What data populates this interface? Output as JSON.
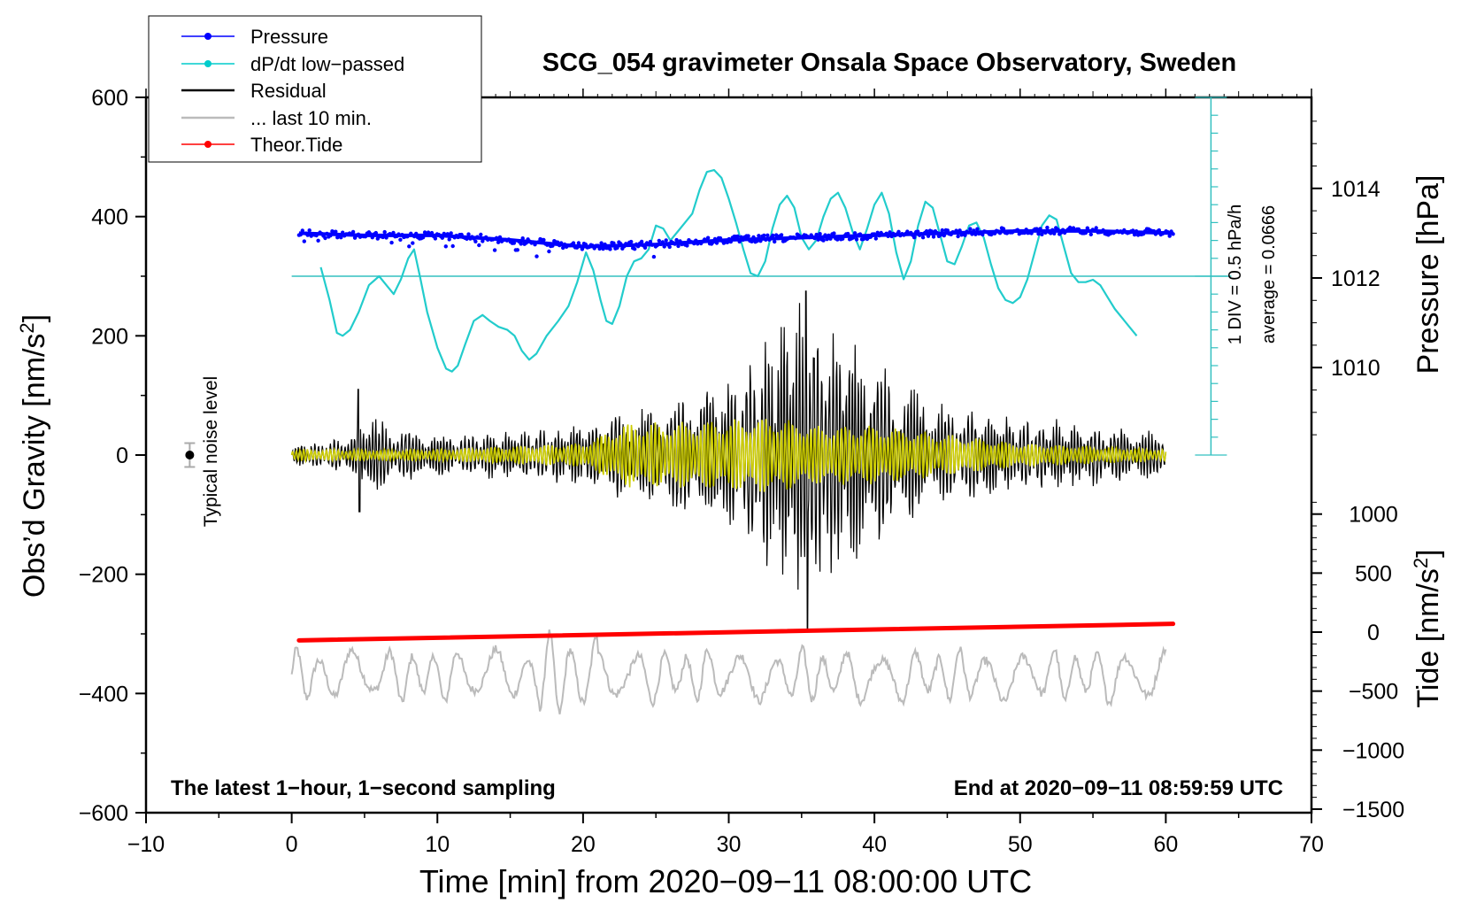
{
  "chart_data": {
    "type": "line",
    "title": "SCG_054 gravimeter Onsala Space Observatory, Sweden",
    "xlabel": "Time [min] from 2020−09−11 08:00:00 UTC",
    "ylabel_main": "Obs’d Gravity [nm/s²]",
    "ylabel_main_base": "Obs’d Gravity [nm/s",
    "ylabel_main_sup": "2",
    "ylabel_main_close": "]",
    "ylabel_pressure": "Pressure [hPa]",
    "ylabel_tide": "Tide [nm/s²]",
    "ylabel_tide_base": "Tide [nm/s",
    "ylabel_tide_sup": "2",
    "ylabel_tide_close": "]",
    "xlim": [
      -10,
      70
    ],
    "ylim_main": [
      -600,
      600
    ],
    "x_ticks": [
      -10,
      0,
      10,
      20,
      30,
      40,
      50,
      60,
      70
    ],
    "x_tick_labels": [
      "−10",
      "0",
      "10",
      "20",
      "30",
      "40",
      "50",
      "60",
      "70"
    ],
    "y_ticks_main": [
      -600,
      -400,
      -200,
      0,
      200,
      400,
      600
    ],
    "y_tick_labels_main": [
      "−600",
      "−400",
      "−200",
      "0",
      "200",
      "400",
      "600"
    ],
    "pressure_axis": {
      "ticks": [
        1010,
        1012,
        1014
      ],
      "tick_labels": [
        "1010",
        "1012",
        "1014"
      ]
    },
    "tide_axis": {
      "ticks": [
        -1500,
        -1000,
        -500,
        0,
        500,
        1000
      ],
      "tick_labels": [
        "−1500",
        "−1000",
        "−500",
        "0",
        "500",
        "1000"
      ]
    },
    "legend": [
      {
        "name": "Pressure",
        "color": "#0000ff",
        "marker": "dot"
      },
      {
        "name": "dP/dt low−passed",
        "color": "#00cccc",
        "marker": "dot"
      },
      {
        "name": "Residual",
        "color": "#000000",
        "marker": "none"
      },
      {
        "name": "... last 10 min.",
        "color": "#bbbbbb",
        "marker": "none"
      },
      {
        "name": "Theor.Tide",
        "color": "#ff0000",
        "marker": "dot"
      }
    ],
    "legend_position": "top-left",
    "annotations": {
      "noise_label": "Typical noise level",
      "scale_div": "1 DIV = 0.5 hPa/h",
      "scale_avg": "average = 0.0666",
      "bottom_left": "The latest 1−hour, 1−second sampling",
      "bottom_right": "End at 2020−09−11 08:59:59 UTC"
    },
    "noise_level": {
      "x": -7,
      "y": 0,
      "err": 20
    },
    "pressure_series": {
      "name": "Pressure",
      "x": [
        0.5,
        5,
        10,
        15,
        20,
        25,
        30,
        35,
        40,
        45,
        50,
        55,
        60.5
      ],
      "y_hpa": [
        1013.0,
        1012.95,
        1012.95,
        1012.85,
        1012.7,
        1012.75,
        1012.85,
        1012.9,
        1012.95,
        1013.0,
        1013.05,
        1013.05,
        1013.0
      ]
    },
    "dpdt_series": {
      "name": "dP/dt low−passed",
      "baseline_y": 300,
      "x": [
        2.0,
        2.6,
        3.1,
        3.5,
        4.0,
        4.6,
        5.3,
        6.0,
        6.5,
        7.0,
        7.5,
        8.0,
        8.4,
        8.8,
        9.3,
        10.0,
        10.6,
        11.0,
        11.4,
        11.9,
        12.5,
        13.1,
        13.6,
        14.2,
        14.8,
        15.3,
        15.8,
        16.3,
        16.8,
        17.5,
        18.3,
        19.0,
        19.6,
        20.2,
        20.7,
        21.2,
        21.6,
        22.0,
        22.5,
        23.0,
        23.5,
        24.0,
        24.5,
        25.0,
        25.5,
        26.0,
        26.5,
        27.0,
        27.5,
        28.0,
        28.5,
        29.0,
        29.5,
        30.0,
        30.5,
        31.0,
        31.5,
        32.0,
        32.5,
        33.0,
        33.5,
        34.0,
        34.5,
        35.0,
        35.5,
        36.0,
        36.5,
        37.0,
        37.5,
        38.0,
        38.5,
        39.0,
        39.5,
        40.0,
        40.5,
        41.0,
        41.5,
        42.0,
        42.5,
        43.0,
        43.5,
        44.0,
        44.5,
        45.0,
        45.5,
        46.0,
        46.5,
        47.0,
        47.5,
        48.0,
        48.5,
        49.0,
        49.5,
        50.0,
        50.5,
        51.0,
        51.5,
        52.0,
        52.5,
        53.0,
        53.5,
        54.0,
        54.5,
        55.0,
        55.5,
        56.0,
        56.5,
        57.0,
        57.5,
        58.0
      ],
      "y": [
        315,
        260,
        205,
        200,
        210,
        240,
        285,
        300,
        285,
        270,
        295,
        330,
        345,
        300,
        240,
        180,
        145,
        140,
        150,
        185,
        225,
        235,
        225,
        215,
        210,
        200,
        175,
        160,
        170,
        200,
        225,
        250,
        290,
        340,
        310,
        260,
        225,
        220,
        250,
        300,
        325,
        330,
        345,
        385,
        380,
        360,
        375,
        390,
        405,
        445,
        475,
        478,
        465,
        430,
        390,
        345,
        305,
        300,
        325,
        380,
        420,
        435,
        415,
        365,
        345,
        360,
        400,
        430,
        440,
        415,
        375,
        345,
        380,
        420,
        440,
        405,
        340,
        295,
        325,
        385,
        425,
        415,
        370,
        325,
        320,
        350,
        385,
        390,
        365,
        320,
        280,
        260,
        255,
        265,
        295,
        340,
        385,
        402,
        395,
        350,
        305,
        290,
        290,
        294,
        285,
        265,
        245,
        230,
        215,
        200
      ]
    },
    "residual_series": {
      "name": "Residual",
      "x_range": [
        0,
        60
      ],
      "envelope_x": [
        0,
        4,
        5,
        8,
        12,
        18,
        23,
        25,
        28,
        31,
        33,
        35,
        36,
        38,
        40,
        42,
        45,
        50,
        55,
        60
      ],
      "envelope_amp": [
        15,
        25,
        60,
        35,
        30,
        40,
        60,
        75,
        95,
        120,
        170,
        210,
        200,
        170,
        140,
        100,
        70,
        55,
        45,
        30
      ],
      "peak_max": 275,
      "peak_min": -295
    },
    "yellow_series": {
      "name": "Residual filtered",
      "color": "#cccc00",
      "envelope_x": [
        0,
        10,
        20,
        23,
        26,
        30,
        33,
        36,
        40,
        45,
        50,
        60
      ],
      "envelope_amp": [
        10,
        10,
        20,
        55,
        55,
        60,
        65,
        50,
        50,
        35,
        20,
        10
      ]
    },
    "tide_series": {
      "name": "Theor.Tide",
      "x": [
        0.5,
        60.5
      ],
      "y": [
        -70,
        70
      ]
    },
    "last10_series": {
      "name": "... last 10 min.",
      "center": -370,
      "amp": 45,
      "x_range": [
        0,
        60
      ]
    }
  }
}
